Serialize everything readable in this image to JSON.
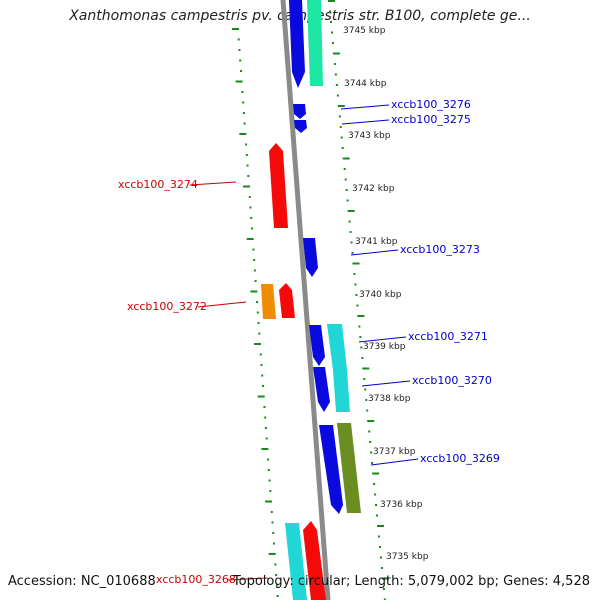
{
  "title": "Xanthomonas campestris pv. campestris str. B100, complete ge...",
  "footer": {
    "accession": "Accession: NC_010688",
    "topology": "Topology: circular; Length: 5,079,002 bp; Genes: 4,528"
  },
  "colors": {
    "plus_strand_blue": "#0a0adf",
    "minus_strand_red": "#f50a0a",
    "teal": "#20d6d6",
    "mint": "#1ee6a4",
    "orange": "#f08c00",
    "olive": "#6b8e23",
    "backbone": "#8a8a8a",
    "ticks": "#1a8a1a",
    "label_blue": "#0000cc",
    "label_red": "#cc0000"
  },
  "ruler_labels": [
    "3745 kbp",
    "3744 kbp",
    "3743 kbp",
    "3742 kbp",
    "3741 kbp",
    "3740 kbp",
    "3739 kbp",
    "3738 kbp",
    "3737 kbp",
    "3736 kbp",
    "3735 kbp"
  ],
  "gene_labels": {
    "g3276": "xccb100_3276",
    "g3275": "xccb100_3275",
    "g3274": "xccb100_3274",
    "g3273": "xccb100_3273",
    "g3272": "xccb100_3272",
    "g3271": "xccb100_3271",
    "g3270": "xccb100_3270",
    "g3269": "xccb100_3269",
    "g3268": "xccb100_3268"
  }
}
